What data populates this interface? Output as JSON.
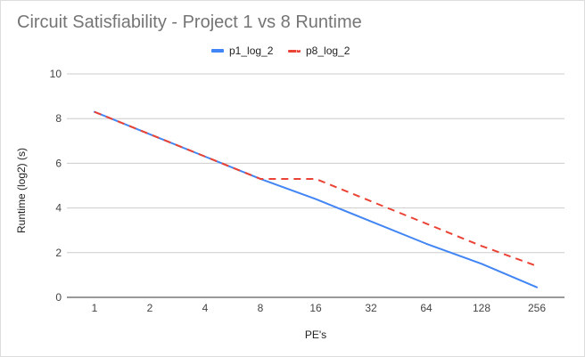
{
  "chart_data": {
    "type": "line",
    "title": "Circuit Satisfiability - Project 1 vs 8 Runtime",
    "xlabel": "PE's",
    "ylabel": "Runtime (log2) (s)",
    "categories": [
      "1",
      "2",
      "4",
      "8",
      "16",
      "32",
      "64",
      "128",
      "256"
    ],
    "ylim": [
      0,
      10
    ],
    "yticks": [
      "0",
      "2",
      "4",
      "6",
      "8",
      "10"
    ],
    "grid": true,
    "legend": "top",
    "series": [
      {
        "name": "p1_log_2",
        "color": "#4285f4",
        "dash": false,
        "values": [
          8.3,
          7.3,
          6.3,
          5.3,
          4.4,
          3.4,
          2.4,
          1.5,
          0.45
        ]
      },
      {
        "name": "p8_log_2",
        "color": "#ea4335",
        "dash": true,
        "values": [
          8.3,
          7.3,
          6.3,
          5.3,
          5.3,
          4.3,
          3.3,
          2.3,
          1.4
        ]
      }
    ]
  }
}
